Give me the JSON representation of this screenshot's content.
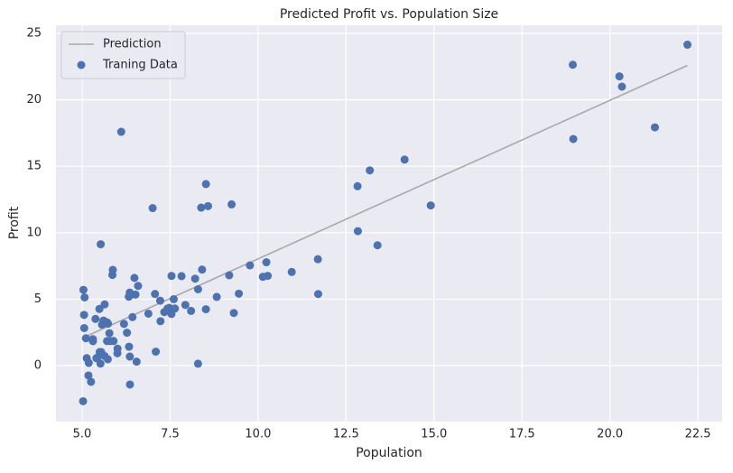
{
  "chart_data": {
    "type": "scatter",
    "title": "Predicted Profit vs. Population Size",
    "xlabel": "Population",
    "ylabel": "Profit",
    "xlim": [
      4.256,
      23.19
    ],
    "ylim": [
      -4.21,
      25.61
    ],
    "xticks": [
      {
        "value": 5,
        "label": "5.0"
      },
      {
        "value": 7.5,
        "label": "7.5"
      },
      {
        "value": 10,
        "label": "10.0"
      },
      {
        "value": 12.5,
        "label": "12.5"
      },
      {
        "value": 15,
        "label": "15.0"
      },
      {
        "value": 17.5,
        "label": "17.5"
      },
      {
        "value": 20,
        "label": "20.0"
      },
      {
        "value": 22.5,
        "label": "22.5"
      }
    ],
    "yticks": [
      0,
      5,
      10,
      15,
      20,
      25
    ],
    "grid": true,
    "legend": "upper left",
    "series": [
      {
        "name": "Prediction",
        "type": "line",
        "color": "#a9a9a9",
        "x": [
          5.0269,
          22.203
        ],
        "values": [
          2.1,
          22.59
        ]
      },
      {
        "name": "Traning Data",
        "type": "scatter",
        "color": "#4c72b0",
        "x": [
          6.1101,
          5.5277,
          8.5186,
          7.0032,
          5.8598,
          8.3829,
          7.4764,
          8.5781,
          6.4862,
          5.0546,
          5.7107,
          14.164,
          5.734,
          8.4084,
          5.6407,
          5.3794,
          6.3654,
          5.1301,
          6.4296,
          7.0708,
          6.1891,
          20.27,
          5.4901,
          6.3261,
          5.5649,
          18.945,
          12.828,
          10.957,
          13.176,
          22.203,
          5.2524,
          6.5894,
          9.2482,
          5.8918,
          8.2111,
          7.9334,
          8.0959,
          5.6063,
          12.836,
          6.3534,
          5.4069,
          6.8825,
          11.708,
          5.7737,
          7.8247,
          7.0931,
          5.0702,
          5.8014,
          11.7,
          5.5416,
          7.5402,
          5.3077,
          7.4239,
          7.6031,
          6.3328,
          6.3589,
          6.2742,
          5.6397,
          9.3102,
          9.4536,
          8.8254,
          5.1793,
          21.279,
          14.908,
          18.959,
          7.2182,
          8.2951,
          10.236,
          5.4994,
          20.341,
          10.136,
          7.3345,
          6.0062,
          7.2259,
          5.0269,
          6.5479,
          7.5386,
          5.0365,
          10.274,
          5.1077,
          5.7292,
          5.1884,
          6.3557,
          9.7687,
          6.5159,
          8.5172,
          9.1802,
          6.002,
          5.5204,
          5.0594,
          5.7077,
          7.6366,
          5.8707,
          5.3054,
          8.2934,
          13.394,
          5.4369
        ],
        "values": [
          17.592,
          9.1302,
          13.662,
          11.854,
          6.8233,
          11.886,
          4.3483,
          12,
          6.5987,
          3.8166,
          3.2522,
          15.505,
          3.1551,
          7.2258,
          0.71618,
          3.5129,
          5.3048,
          0.56077,
          3.6518,
          5.3893,
          3.1386,
          21.767,
          4.263,
          5.1875,
          3.0825,
          22.638,
          13.501,
          7.0467,
          14.692,
          24.147,
          -1.22,
          5.9966,
          12.134,
          1.8495,
          6.5426,
          4.5623,
          4.1164,
          3.3928,
          10.117,
          5.4974,
          0.55657,
          3.9115,
          5.3854,
          2.4406,
          6.7318,
          1.0463,
          5.1337,
          1.844,
          8.0043,
          1.0179,
          6.7504,
          1.8396,
          4.2885,
          4.9981,
          1.4233,
          -1.4211,
          2.4756,
          4.6042,
          3.9624,
          5.4141,
          5.1694,
          -0.74279,
          17.929,
          12.054,
          17.054,
          4.8852,
          5.7442,
          7.7754,
          1.0173,
          20.992,
          6.6799,
          4.0259,
          1.2784,
          3.3411,
          -2.6807,
          0.29678,
          3.8845,
          5.7014,
          6.7526,
          2.0576,
          0.47953,
          0.20421,
          0.67861,
          7.5435,
          5.3436,
          4.2415,
          6.7981,
          0.92695,
          0.152,
          2.8214,
          1.8451,
          4.2959,
          7.2029,
          1.9869,
          0.14454,
          9.0551,
          0.61705
        ]
      }
    ]
  }
}
